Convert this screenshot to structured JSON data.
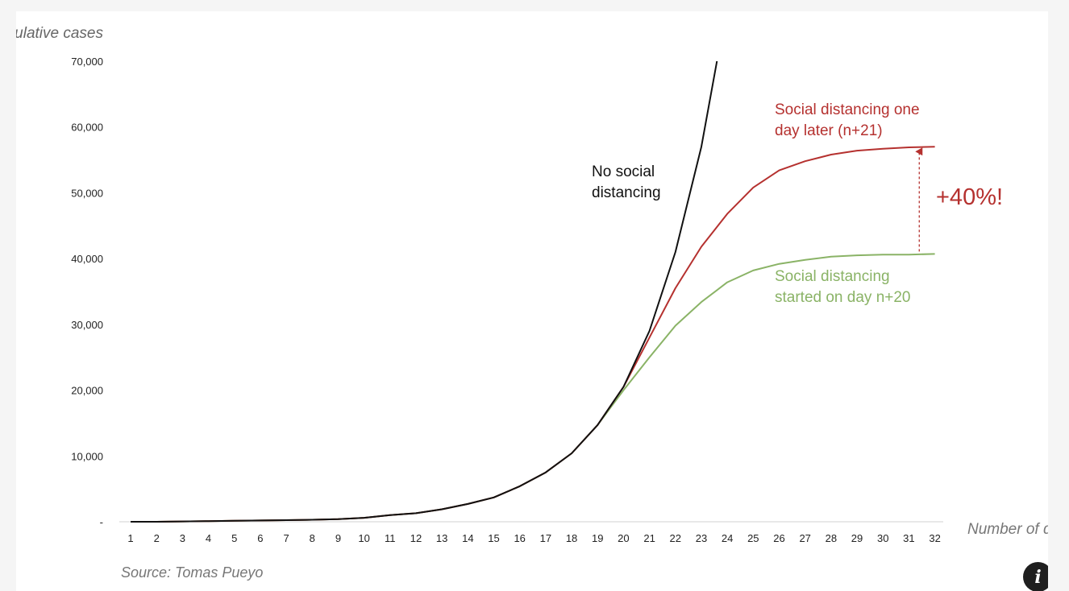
{
  "info_button": {
    "icon": "info-icon",
    "glyph": "i"
  },
  "chart_data": {
    "type": "line",
    "ylabel": "Cumulative cases",
    "xlabel": "Number of days",
    "ylim": [
      0,
      70000
    ],
    "yticks": [
      {
        "value": 0,
        "label": "-"
      },
      {
        "value": 10000,
        "label": "10,000"
      },
      {
        "value": 20000,
        "label": "20,000"
      },
      {
        "value": 30000,
        "label": "30,000"
      },
      {
        "value": 40000,
        "label": "40,000"
      },
      {
        "value": 50000,
        "label": "50,000"
      },
      {
        "value": 60000,
        "label": "60,000"
      },
      {
        "value": 70000,
        "label": "70,000"
      }
    ],
    "x": [
      1,
      2,
      3,
      4,
      5,
      6,
      7,
      8,
      9,
      10,
      11,
      12,
      13,
      14,
      15,
      16,
      17,
      18,
      19,
      20,
      21,
      22,
      23,
      24,
      25,
      26,
      27,
      28,
      29,
      30,
      31,
      32
    ],
    "grid": false,
    "series": [
      {
        "name": "No social distancing",
        "color": "#111111",
        "x": [
          1,
          2,
          3,
          4,
          5,
          6,
          7,
          8,
          9,
          10,
          11,
          12,
          13,
          14,
          15,
          16,
          17,
          18,
          19,
          20,
          21,
          22,
          23,
          23.6
        ],
        "values": [
          0,
          0,
          50,
          100,
          150,
          200,
          250,
          300,
          400,
          600,
          1000,
          1300,
          1900,
          2700,
          3700,
          5400,
          7500,
          10400,
          14700,
          20500,
          29000,
          41000,
          57000,
          70000
        ]
      },
      {
        "name": "Social distancing one day later (n+21)",
        "color": "#b5312f",
        "x": [
          1,
          2,
          3,
          4,
          5,
          6,
          7,
          8,
          9,
          10,
          11,
          12,
          13,
          14,
          15,
          16,
          17,
          18,
          19,
          20,
          21,
          22,
          23,
          24,
          25,
          26,
          27,
          28,
          29,
          30,
          31,
          32
        ],
        "values": [
          0,
          0,
          50,
          100,
          150,
          200,
          250,
          300,
          400,
          600,
          1000,
          1300,
          1900,
          2700,
          3700,
          5400,
          7500,
          10400,
          14700,
          20500,
          28000,
          35500,
          41800,
          46800,
          50800,
          53400,
          54800,
          55800,
          56400,
          56700,
          56900,
          57000
        ]
      },
      {
        "name": "Social distancing started on day n+20",
        "color": "#8ab366",
        "x": [
          1,
          2,
          3,
          4,
          5,
          6,
          7,
          8,
          9,
          10,
          11,
          12,
          13,
          14,
          15,
          16,
          17,
          18,
          19,
          20,
          21,
          22,
          23,
          24,
          25,
          26,
          27,
          28,
          29,
          30,
          31,
          32
        ],
        "values": [
          0,
          0,
          50,
          100,
          150,
          200,
          250,
          300,
          400,
          600,
          1000,
          1300,
          1900,
          2700,
          3700,
          5400,
          7500,
          10400,
          14700,
          20000,
          25000,
          29800,
          33400,
          36400,
          38200,
          39200,
          39800,
          40300,
          40500,
          40600,
          40600,
          40700
        ]
      }
    ],
    "annotations": [
      {
        "name": "label-no-distancing",
        "lines": [
          "No social",
          "distancing"
        ],
        "color": "#111111"
      },
      {
        "name": "label-one-day-later",
        "lines": [
          "Social distancing one",
          "day later (n+21)"
        ],
        "color": "#b5312f"
      },
      {
        "name": "label-started-n20",
        "lines": [
          "Social distancing",
          "started on day n+20"
        ],
        "color": "#8ab366"
      },
      {
        "name": "increase-label",
        "text": "+40%!",
        "color": "#b5312f"
      }
    ],
    "increase_arrow": {
      "x": 31.4,
      "from": 40700,
      "to": 57000,
      "color": "#b5312f"
    },
    "source": "Source: Tomas Pueyo"
  }
}
